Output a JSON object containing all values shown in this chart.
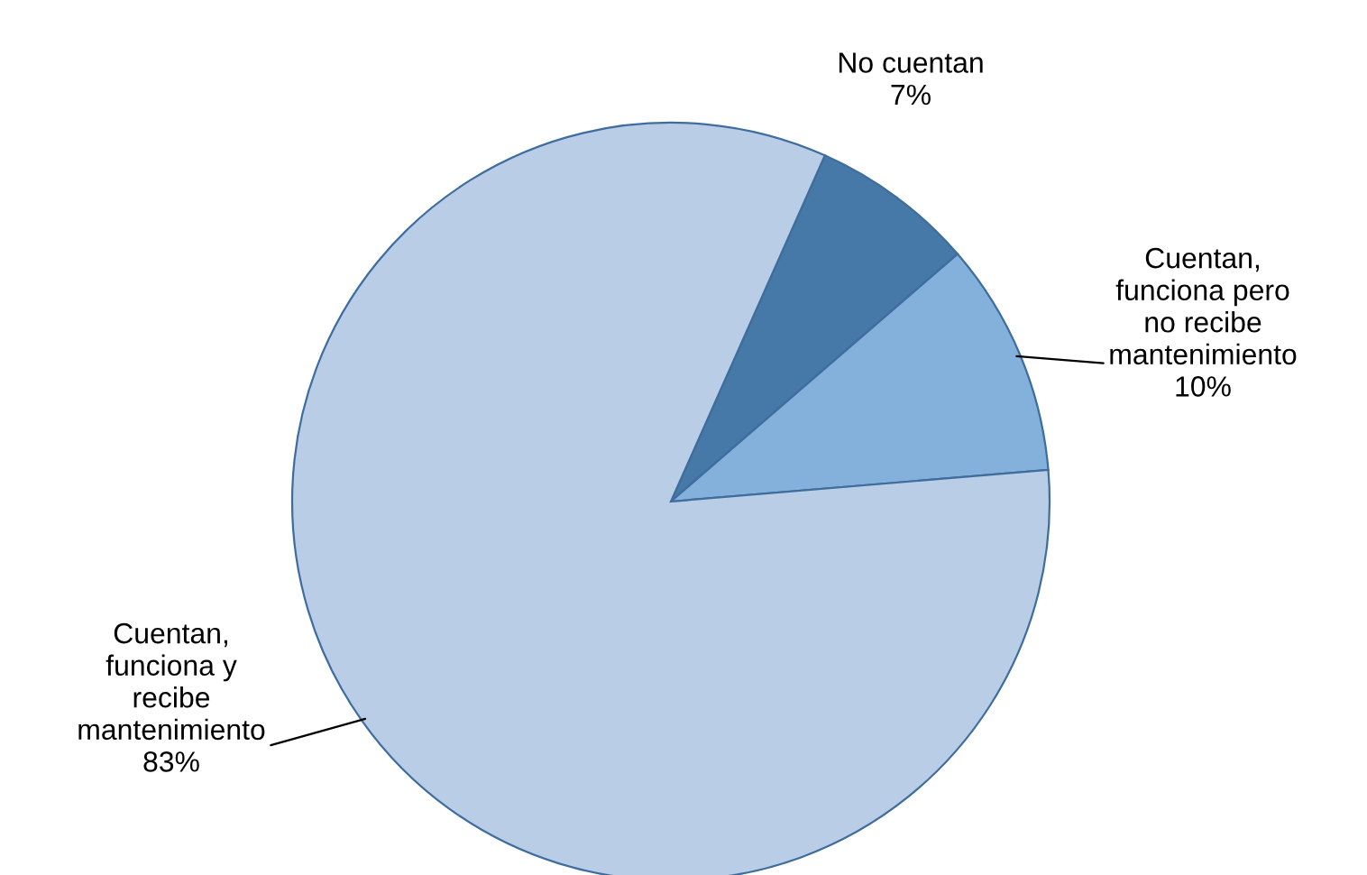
{
  "chart_data": {
    "type": "pie",
    "categories": [
      "No cuentan",
      "Cuentan,\nfunciona pero\nno recibe\nmantenimiento",
      "Cuentan,\nfunciona y\nrecibe\nmantenimiento"
    ],
    "values": [
      7,
      10,
      83
    ],
    "colors": [
      "#4678a8",
      "#84b0dc",
      "#b9cde6"
    ],
    "value_labels": [
      "7%",
      "10%",
      "83%"
    ],
    "legend": false
  }
}
